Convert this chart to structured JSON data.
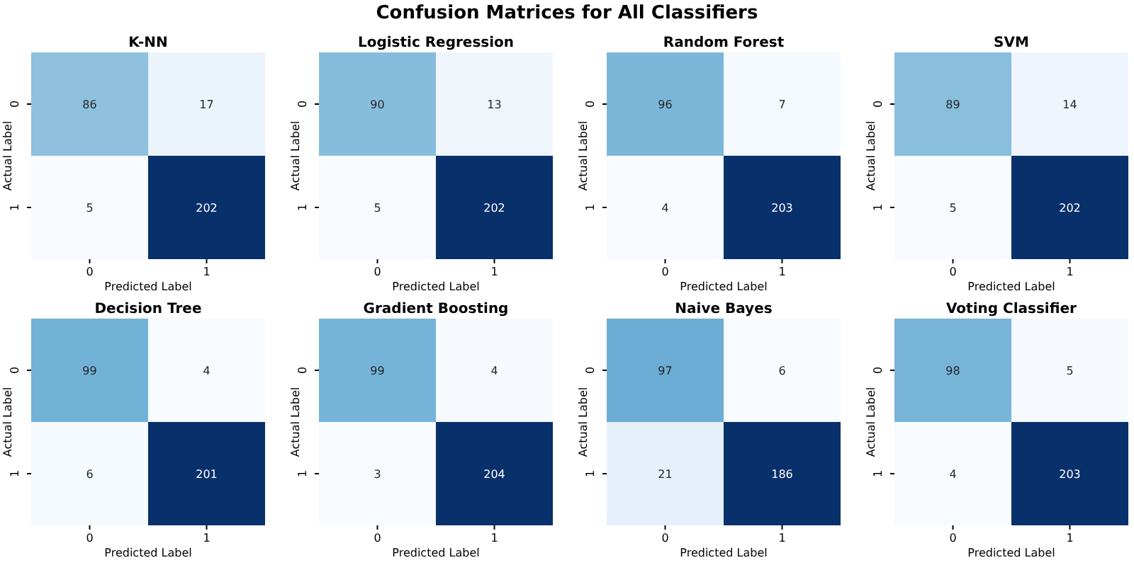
{
  "chart_data": [
    {
      "type": "other",
      "title": "Confusion Matrices for All Classifiers"
    },
    {
      "type": "heatmap",
      "title": "K-NN",
      "categories": [
        "0",
        "1"
      ],
      "y_categories": [
        "0",
        "1"
      ],
      "cells": [
        [
          86,
          17
        ],
        [
          5,
          202
        ]
      ],
      "data_labels": true,
      "xlabel": "Predicted Label",
      "ylabel": "Actual Label"
    },
    {
      "type": "heatmap",
      "title": "Logistic Regression",
      "categories": [
        "0",
        "1"
      ],
      "y_categories": [
        "0",
        "1"
      ],
      "cells": [
        [
          90,
          13
        ],
        [
          5,
          202
        ]
      ],
      "data_labels": true,
      "xlabel": "Predicted Label",
      "ylabel": "Actual Label"
    },
    {
      "type": "heatmap",
      "title": "Random Forest",
      "categories": [
        "0",
        "1"
      ],
      "y_categories": [
        "0",
        "1"
      ],
      "cells": [
        [
          96,
          7
        ],
        [
          4,
          203
        ]
      ],
      "data_labels": true,
      "xlabel": "Predicted Label",
      "ylabel": "Actual Label"
    },
    {
      "type": "heatmap",
      "title": "SVM",
      "categories": [
        "0",
        "1"
      ],
      "y_categories": [
        "0",
        "1"
      ],
      "cells": [
        [
          89,
          14
        ],
        [
          5,
          202
        ]
      ],
      "data_labels": true,
      "xlabel": "Predicted Label",
      "ylabel": "Actual Label"
    },
    {
      "type": "heatmap",
      "title": "Decision Tree",
      "categories": [
        "0",
        "1"
      ],
      "y_categories": [
        "0",
        "1"
      ],
      "cells": [
        [
          99,
          4
        ],
        [
          6,
          201
        ]
      ],
      "data_labels": true,
      "xlabel": "Predicted Label",
      "ylabel": "Actual Label"
    },
    {
      "type": "heatmap",
      "title": "Gradient Boosting",
      "categories": [
        "0",
        "1"
      ],
      "y_categories": [
        "0",
        "1"
      ],
      "cells": [
        [
          99,
          4
        ],
        [
          3,
          204
        ]
      ],
      "data_labels": true,
      "xlabel": "Predicted Label",
      "ylabel": "Actual Label"
    },
    {
      "type": "heatmap",
      "title": "Naive Bayes",
      "categories": [
        "0",
        "1"
      ],
      "y_categories": [
        "0",
        "1"
      ],
      "cells": [
        [
          97,
          6
        ],
        [
          21,
          186
        ]
      ],
      "data_labels": true,
      "xlabel": "Predicted Label",
      "ylabel": "Actual Label"
    },
    {
      "type": "heatmap",
      "title": "Voting Classifier",
      "categories": [
        "0",
        "1"
      ],
      "y_categories": [
        "0",
        "1"
      ],
      "cells": [
        [
          98,
          5
        ],
        [
          4,
          203
        ]
      ],
      "data_labels": true,
      "xlabel": "Predicted Label",
      "ylabel": "Actual Label"
    }
  ]
}
